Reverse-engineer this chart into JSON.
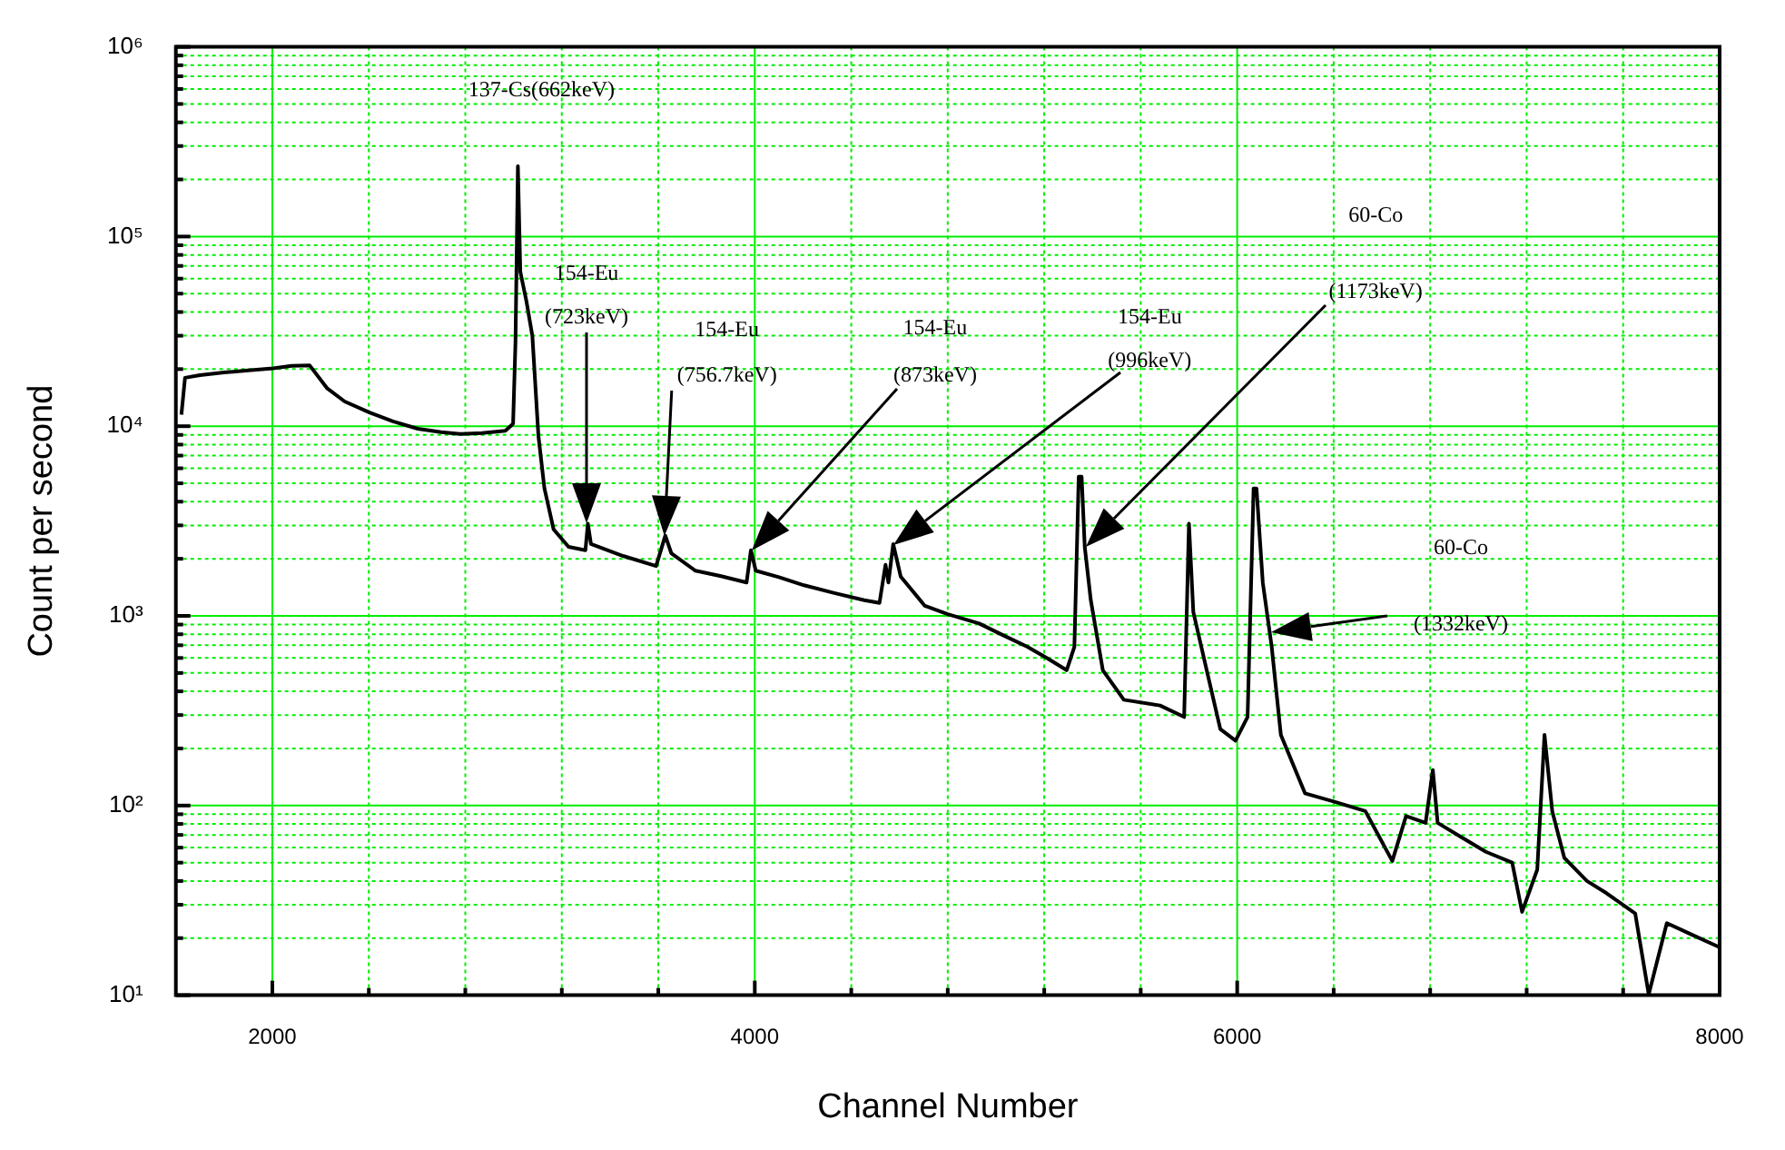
{
  "chart_data": {
    "type": "line",
    "xlabel": "Channel Number",
    "ylabel": "Count per second",
    "log": "y",
    "grid": true,
    "xlim": [
      1600,
      8000
    ],
    "xticks": [
      2000,
      {
        "value": 2400,
        "label": null
      },
      {
        "value": 2800,
        "label": null
      },
      {
        "value": 3200,
        "label": null
      },
      {
        "value": 3600,
        "label": null
      },
      4000,
      {
        "value": 4400,
        "label": null
      },
      {
        "value": 4800,
        "label": null
      },
      {
        "value": 5200,
        "label": null
      },
      {
        "value": 5600,
        "label": null
      },
      6000,
      {
        "value": 6400,
        "label": null
      },
      {
        "value": 6800,
        "label": null
      },
      {
        "value": 7200,
        "label": null
      },
      {
        "value": 7600,
        "label": null
      },
      8000
    ],
    "ylim": [
      10,
      1000000
    ],
    "yticks": [
      {
        "value": 10,
        "label": "10¹"
      },
      {
        "value": 20,
        "label": null
      },
      {
        "value": 30,
        "label": null
      },
      {
        "value": 40,
        "label": null
      },
      {
        "value": 50,
        "label": null
      },
      {
        "value": 60,
        "label": null
      },
      {
        "value": 70,
        "label": null
      },
      {
        "value": 80,
        "label": null
      },
      {
        "value": 90,
        "label": null
      },
      {
        "value": 100,
        "label": "10²"
      },
      {
        "value": 200,
        "label": null
      },
      {
        "value": 300,
        "label": null
      },
      {
        "value": 400,
        "label": null
      },
      {
        "value": 500,
        "label": null
      },
      {
        "value": 600,
        "label": null
      },
      {
        "value": 700,
        "label": null
      },
      {
        "value": 800,
        "label": null
      },
      {
        "value": 900,
        "label": null
      },
      {
        "value": 1000,
        "label": "10³"
      },
      {
        "value": 2000,
        "label": null
      },
      {
        "value": 3000,
        "label": null
      },
      {
        "value": 4000,
        "label": null
      },
      {
        "value": 5000,
        "label": null
      },
      {
        "value": 6000,
        "label": null
      },
      {
        "value": 7000,
        "label": null
      },
      {
        "value": 8000,
        "label": null
      },
      {
        "value": 9000,
        "label": null
      },
      {
        "value": 10000,
        "label": "10⁴"
      },
      {
        "value": 20000,
        "label": null
      },
      {
        "value": 30000,
        "label": null
      },
      {
        "value": 40000,
        "label": null
      },
      {
        "value": 50000,
        "label": null
      },
      {
        "value": 60000,
        "label": null
      },
      {
        "value": 70000,
        "label": null
      },
      {
        "value": 80000,
        "label": null
      },
      {
        "value": 90000,
        "label": null
      },
      {
        "value": 100000,
        "label": "10⁵"
      },
      {
        "value": 200000,
        "label": null
      },
      {
        "value": 300000,
        "label": null
      },
      {
        "value": 400000,
        "label": null
      },
      {
        "value": 500000,
        "label": null
      },
      {
        "value": 600000,
        "label": null
      },
      {
        "value": 700000,
        "label": null
      },
      {
        "value": 800000,
        "label": null
      },
      {
        "value": 900000,
        "label": null
      },
      {
        "value": 1000000,
        "label": "10⁶"
      }
    ],
    "annotations": [
      {
        "text": "137-Cs(662keV)",
        "x": 3018,
        "y": 235000
      },
      "154-Eu (723keV)",
      "154-Eu (756.7keV)",
      "154-Eu (873keV)",
      "154-Eu (996keV)",
      "60-Co (1173keV)",
      "60-Co (1332keV)"
    ],
    "series": [
      {
        "color": "#000000",
        "x": [
          1623,
          1638,
          1700,
          1800,
          1900,
          2003,
          2080,
          2155,
          2228,
          2300,
          2403,
          2500,
          2603,
          2700,
          2778,
          2870,
          2966,
          2998,
          3008,
          3018,
          3028,
          3053,
          3078,
          3103,
          3128,
          3166,
          3228,
          3298,
          3308,
          3321,
          3454,
          3591,
          3629,
          3654,
          3754,
          3860,
          3966,
          3984,
          4004,
          4100,
          4204,
          4330,
          4454,
          4517,
          4542,
          4554,
          4574,
          4605,
          4705,
          4800,
          4930,
          5030,
          5130,
          5210,
          5293,
          5325,
          5343,
          5355,
          5368,
          5393,
          5443,
          5530,
          5680,
          5780,
          5800,
          5818,
          5868,
          5930,
          5993,
          6043,
          6068,
          6080,
          6106,
          6143,
          6181,
          6281,
          6400,
          6531,
          6643,
          6700,
          6781,
          6811,
          6831,
          6930,
          7031,
          7140,
          7181,
          7244,
          7274,
          7306,
          7356,
          7450,
          7531,
          7650,
          7706,
          7781,
          7880,
          7995
        ],
        "values": [
          11500,
          18000,
          18600,
          19200,
          19700,
          20200,
          20800,
          20900,
          15800,
          13500,
          11800,
          10600,
          9700,
          9300,
          9100,
          9200,
          9450,
          10300,
          27800,
          235000,
          65300,
          45800,
          29900,
          8910,
          4700,
          2860,
          2310,
          2220,
          3060,
          2390,
          2070,
          1830,
          2650,
          2140,
          1730,
          1620,
          1500,
          2220,
          1730,
          1600,
          1450,
          1320,
          1210,
          1170,
          1860,
          1500,
          2390,
          1610,
          1130,
          1020,
          912,
          790,
          687,
          600,
          517,
          687,
          5420,
          5420,
          2310,
          1210,
          517,
          361,
          337,
          293,
          3060,
          1050,
          555,
          253,
          220,
          293,
          4700,
          4700,
          1500,
          687,
          236,
          116,
          105,
          93.5,
          51,
          88,
          81,
          154,
          81,
          68,
          57,
          50,
          27.5,
          46,
          236,
          93.5,
          53,
          40,
          34.5,
          27,
          10.1,
          24,
          21,
          18
        ]
      }
    ]
  }
}
